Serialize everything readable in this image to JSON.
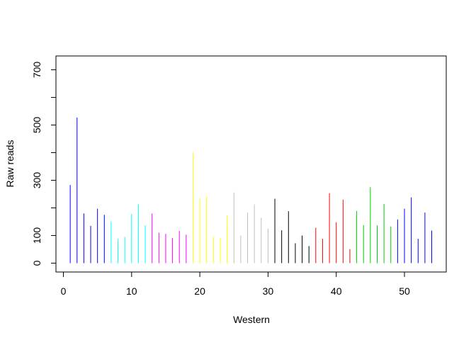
{
  "chart_data": {
    "type": "bar",
    "style": "vertical-lines (R plot type='h')",
    "title": "",
    "xlabel": "Western",
    "ylabel": "Raw reads",
    "xlim": [
      0,
      55
    ],
    "ylim": [
      0,
      700
    ],
    "x_ticks": [
      0,
      10,
      20,
      30,
      40,
      50
    ],
    "y_ticks": [
      0,
      100,
      300,
      500,
      700
    ],
    "y_minor_ticks": [
      200,
      400,
      600
    ],
    "grid": false,
    "legend": "none",
    "series": [
      {
        "color": "#0000FF",
        "points": [
          [
            1,
            283
          ],
          [
            2,
            527
          ],
          [
            3,
            180
          ],
          [
            4,
            135
          ],
          [
            5,
            197
          ],
          [
            6,
            175
          ]
        ]
      },
      {
        "color": "#00FFFF",
        "points": [
          [
            7,
            151
          ],
          [
            8,
            88
          ],
          [
            9,
            95
          ],
          [
            10,
            178
          ],
          [
            11,
            213
          ],
          [
            12,
            137
          ]
        ]
      },
      {
        "color": "#FF00FF",
        "points": [
          [
            13,
            180
          ],
          [
            14,
            110
          ],
          [
            15,
            106
          ],
          [
            16,
            91
          ],
          [
            17,
            117
          ],
          [
            18,
            103
          ]
        ]
      },
      {
        "color": "#FFFF00",
        "points": [
          [
            19,
            401
          ],
          [
            20,
            234
          ],
          [
            21,
            240
          ],
          [
            22,
            98
          ],
          [
            23,
            92
          ],
          [
            24,
            172
          ]
        ]
      },
      {
        "color": "#BEBEBE",
        "points": [
          [
            25,
            256
          ],
          [
            26,
            100
          ],
          [
            27,
            183
          ],
          [
            28,
            213
          ],
          [
            29,
            164
          ],
          [
            30,
            125
          ]
        ]
      },
      {
        "color": "#000000",
        "points": [
          [
            31,
            233
          ],
          [
            32,
            119
          ],
          [
            33,
            188
          ],
          [
            34,
            72
          ],
          [
            35,
            100
          ],
          [
            36,
            62
          ]
        ]
      },
      {
        "color": "#FF0000",
        "points": [
          [
            37,
            128
          ],
          [
            38,
            88
          ],
          [
            39,
            253
          ],
          [
            40,
            148
          ],
          [
            41,
            230
          ],
          [
            42,
            51
          ]
        ]
      },
      {
        "color": "#00CD00",
        "points": [
          [
            43,
            189
          ],
          [
            44,
            138
          ],
          [
            45,
            275
          ],
          [
            46,
            137
          ],
          [
            47,
            214
          ],
          [
            48,
            133
          ]
        ]
      },
      {
        "color": "#0000FF",
        "points": [
          [
            49,
            158
          ],
          [
            50,
            197
          ],
          [
            51,
            238
          ],
          [
            52,
            88
          ],
          [
            53,
            183
          ],
          [
            54,
            118
          ]
        ]
      }
    ]
  }
}
